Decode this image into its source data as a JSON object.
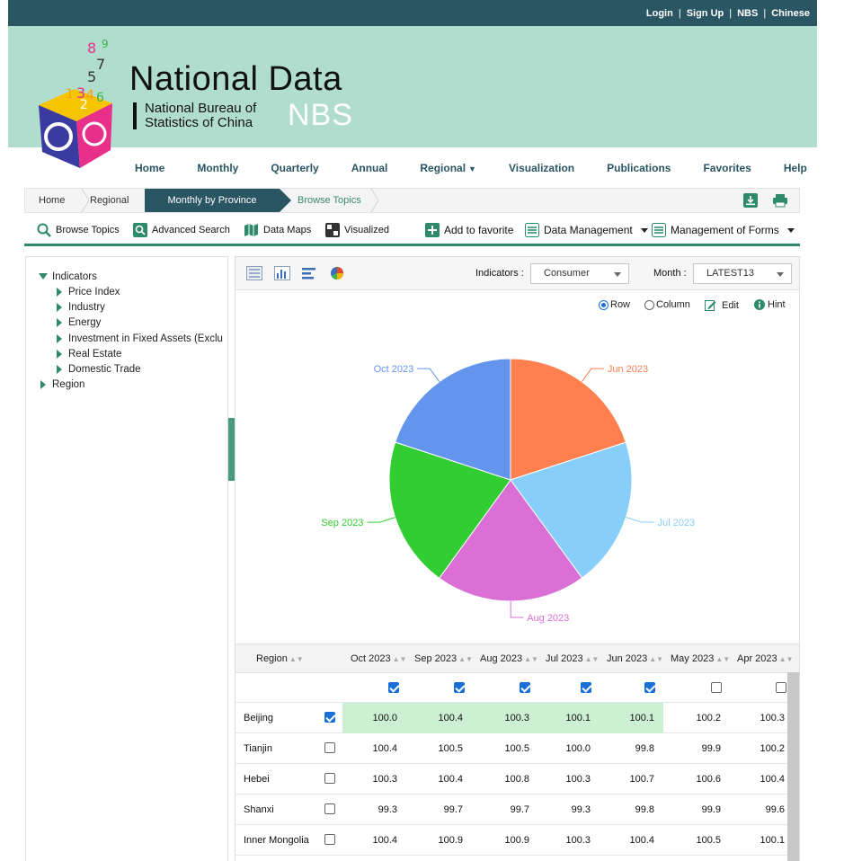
{
  "top_links": {
    "login": "Login",
    "signup": "Sign Up",
    "nbs": "NBS",
    "chinese": "Chinese",
    "sep": "|"
  },
  "brand": {
    "title": "National Data",
    "sub_line1": "National Bureau of",
    "sub_line2": "Statistics of China",
    "nbs": "NBS"
  },
  "nav": {
    "items": [
      "Home",
      "Monthly",
      "Quarterly",
      "Annual",
      "Regional",
      "Visualization",
      "Publications",
      "Favorites",
      "Help"
    ]
  },
  "breadcrumb": {
    "home": "Home",
    "regional": "Regional",
    "active": "Monthly by Province",
    "topics": "Browse Topics"
  },
  "toolbar": {
    "browse": "Browse Topics",
    "advanced": "Advanced Search",
    "maps": "Data Maps",
    "visualized": "Visualized",
    "favorite": "Add to favorite",
    "data_mgmt": "Data Management",
    "forms_mgmt": "Management of Forms"
  },
  "tree": {
    "indicators": "Indicators",
    "children": [
      "Price Index",
      "Industry",
      "Energy",
      "Investment in Fixed Assets (Exclu",
      "Real Estate",
      "Domestic Trade"
    ],
    "region": "Region"
  },
  "controls": {
    "indicators_label": "Indicators :",
    "indicators_value": "Consumer",
    "month_label": "Month :",
    "month_value": "LATEST13",
    "row": "Row",
    "column": "Column",
    "edit": "Edit",
    "hint": "Hint"
  },
  "chart_data": {
    "type": "pie",
    "labels": [
      "Jun 2023",
      "Jul 2023",
      "Aug 2023",
      "Sep 2023",
      "Oct 2023"
    ],
    "values": [
      100.1,
      100.1,
      100.3,
      100.4,
      100.0
    ],
    "colors": [
      "#ff7f4f",
      "#87cefa",
      "#da70d6",
      "#32cd32",
      "#6495ed"
    ]
  },
  "table": {
    "region_header": "Region",
    "columns": [
      "Oct 2023",
      "Sep 2023",
      "Aug 2023",
      "Jul 2023",
      "Jun 2023",
      "May 2023",
      "Apr 2023"
    ],
    "col_checked": [
      true,
      true,
      true,
      true,
      true,
      false,
      false
    ],
    "rows": [
      {
        "name": "Beijing",
        "checked": true,
        "values": [
          "100.0",
          "100.4",
          "100.3",
          "100.1",
          "100.1",
          "100.2",
          "100.3"
        ]
      },
      {
        "name": "Tianjin",
        "checked": false,
        "values": [
          "100.4",
          "100.5",
          "100.5",
          "100.0",
          "99.8",
          "99.9",
          "100.2"
        ]
      },
      {
        "name": "Hebei",
        "checked": false,
        "values": [
          "100.3",
          "100.4",
          "100.8",
          "100.3",
          "100.7",
          "100.6",
          "100.4"
        ]
      },
      {
        "name": "Shanxi",
        "checked": false,
        "values": [
          "99.3",
          "99.7",
          "99.7",
          "99.3",
          "99.8",
          "99.9",
          "99.6"
        ]
      },
      {
        "name": "Inner Mongolia",
        "checked": false,
        "values": [
          "100.4",
          "100.9",
          "100.9",
          "100.3",
          "100.4",
          "100.5",
          "100.1"
        ]
      }
    ]
  }
}
